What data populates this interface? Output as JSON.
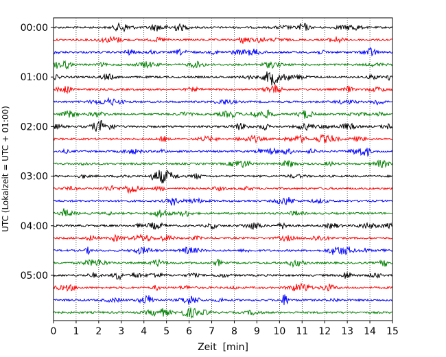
{
  "chart_data": {
    "type": "line",
    "title": "",
    "xlabel": "Zeit  [min]",
    "ylabel": "UTC (Lokalzeit = UTC + 01:00)",
    "xlim": [
      0,
      15
    ],
    "x_ticks": [
      "0",
      "1",
      "2",
      "3",
      "4",
      "5",
      "6",
      "7",
      "8",
      "9",
      "10",
      "11",
      "12",
      "13",
      "14",
      "15"
    ],
    "y_ticks": [
      "00:00",
      "01:00",
      "02:00",
      "03:00",
      "04:00",
      "05:00"
    ],
    "grid": "vertical dotted",
    "trace_interval_min": 15,
    "trace_count": 24,
    "trace_colors": [
      "#000000",
      "#ff0000",
      "#0000ff",
      "#008000"
    ]
  }
}
